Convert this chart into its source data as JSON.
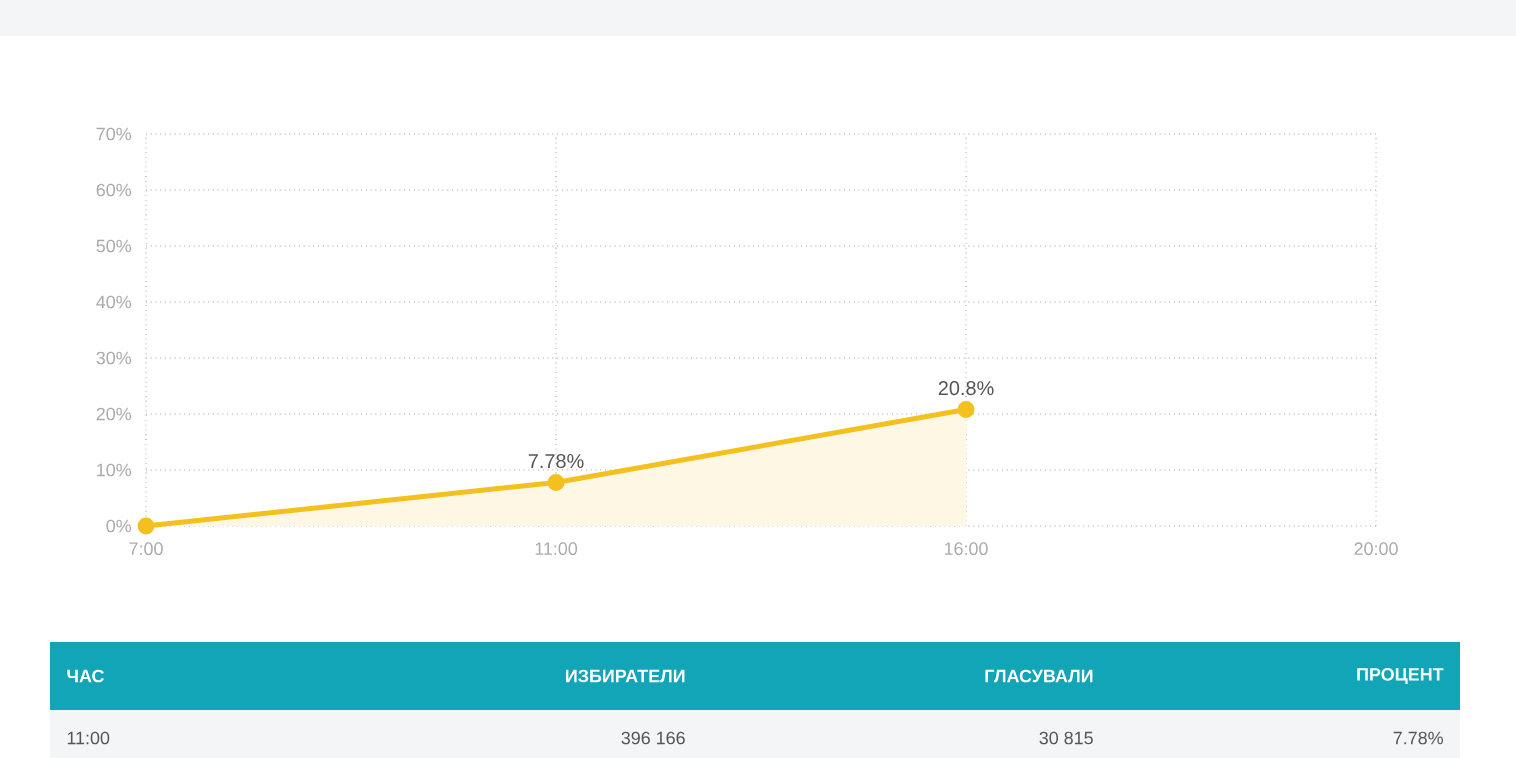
{
  "chart_data": {
    "type": "area",
    "categories": [
      "7:00",
      "11:00",
      "16:00",
      "20:00"
    ],
    "series": [
      {
        "color": "#f4c01e",
        "values": [
          0,
          7.78,
          20.8,
          null
        ],
        "value_labels": [
          null,
          "7.78%",
          "20.8%",
          null
        ]
      }
    ],
    "ylim": [
      0,
      70
    ],
    "yticks": [
      {
        "value": 0,
        "label": "0%"
      },
      {
        "value": 10,
        "label": "10%"
      },
      {
        "value": 20,
        "label": "20%"
      },
      {
        "value": 30,
        "label": "30%"
      },
      {
        "value": 40,
        "label": "40%"
      },
      {
        "value": 50,
        "label": "50%"
      },
      {
        "value": 60,
        "label": "60%"
      },
      {
        "value": 70,
        "label": "70%"
      }
    ],
    "grid": true,
    "marker": "circle",
    "line_style": "solid",
    "annotations": [
      "ЧАС",
      "ИЗБИРАТЕЛИ",
      "ГЛАСУВАЛИ",
      "ПРОЦЕНТ",
      "11:00",
      "396 166",
      "30 815",
      "7.78%"
    ]
  }
}
